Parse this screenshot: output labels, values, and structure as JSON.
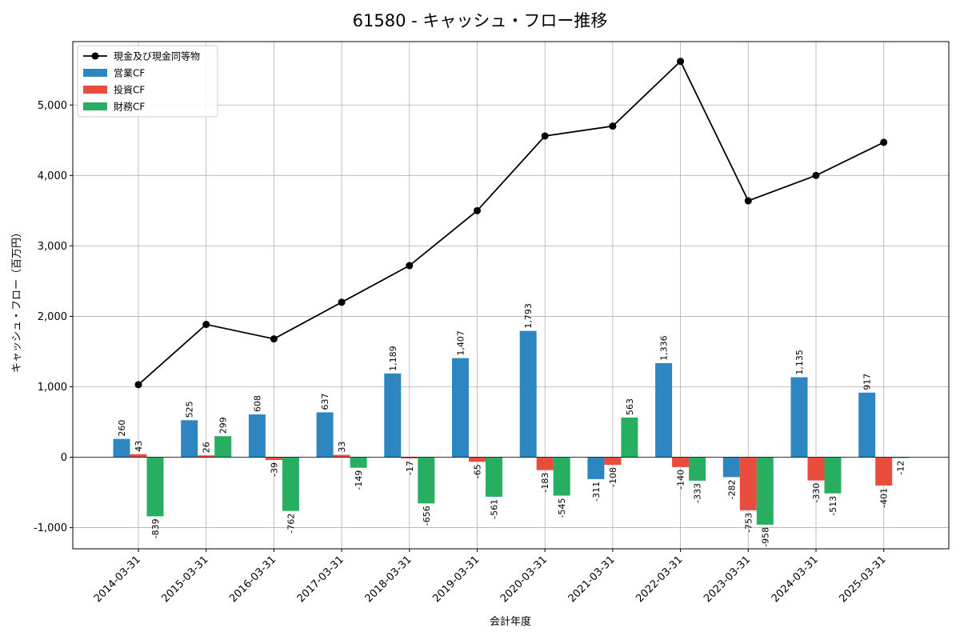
{
  "chart_data": {
    "type": "bar",
    "title": "61580 - キャッシュ・フロー推移",
    "xlabel": "会計年度",
    "ylabel": "キャッシュ・フロー（百万円）",
    "categories": [
      "2014-03-31",
      "2015-03-31",
      "2016-03-31",
      "2017-03-31",
      "2018-03-31",
      "2019-03-31",
      "2020-03-31",
      "2021-03-31",
      "2022-03-31",
      "2023-03-31",
      "2024-03-31",
      "2025-03-31"
    ],
    "ylim": [
      -1300,
      5900
    ],
    "yticks": [
      -1000,
      0,
      1000,
      2000,
      3000,
      4000,
      5000
    ],
    "ytick_labels": [
      "-1,000",
      "0",
      "1,000",
      "2,000",
      "3,000",
      "4,000",
      "5,000"
    ],
    "grid": true,
    "legend_position": "top-left",
    "series": [
      {
        "name": "営業CF",
        "kind": "bar",
        "color": "#2e86c1",
        "values": [
          260,
          525,
          608,
          637,
          1189,
          1407,
          1793,
          -311,
          1336,
          -282,
          1135,
          917
        ],
        "labels": [
          "260",
          "525",
          "608",
          "637",
          "1,189",
          "1,407",
          "1,793",
          "-311",
          "1,336",
          "-282",
          "1,135",
          "917"
        ]
      },
      {
        "name": "投資CF",
        "kind": "bar",
        "color": "#e74c3c",
        "values": [
          43,
          26,
          -39,
          33,
          -17,
          -65,
          -183,
          -108,
          -140,
          -753,
          -330,
          -401
        ],
        "labels": [
          "43",
          "26",
          "-39",
          "33",
          "-17",
          "-65",
          "-183",
          "-108",
          "-140",
          "-753",
          "-330",
          "-401"
        ]
      },
      {
        "name": "財務CF",
        "kind": "bar",
        "color": "#27ae60",
        "values": [
          -839,
          299,
          -762,
          -149,
          -656,
          -561,
          -545,
          563,
          -333,
          -958,
          -513,
          -12
        ],
        "labels": [
          "-839",
          "299",
          "-762",
          "-149",
          "-656",
          "-561",
          "-545",
          "563",
          "-333",
          "-958",
          "-513",
          "-12"
        ]
      },
      {
        "name": "現金及び現金同等物",
        "kind": "line",
        "color": "#000000",
        "values": [
          1030,
          1885,
          1680,
          2200,
          2720,
          3500,
          4560,
          4700,
          5620,
          3640,
          4000,
          4470
        ]
      }
    ]
  }
}
